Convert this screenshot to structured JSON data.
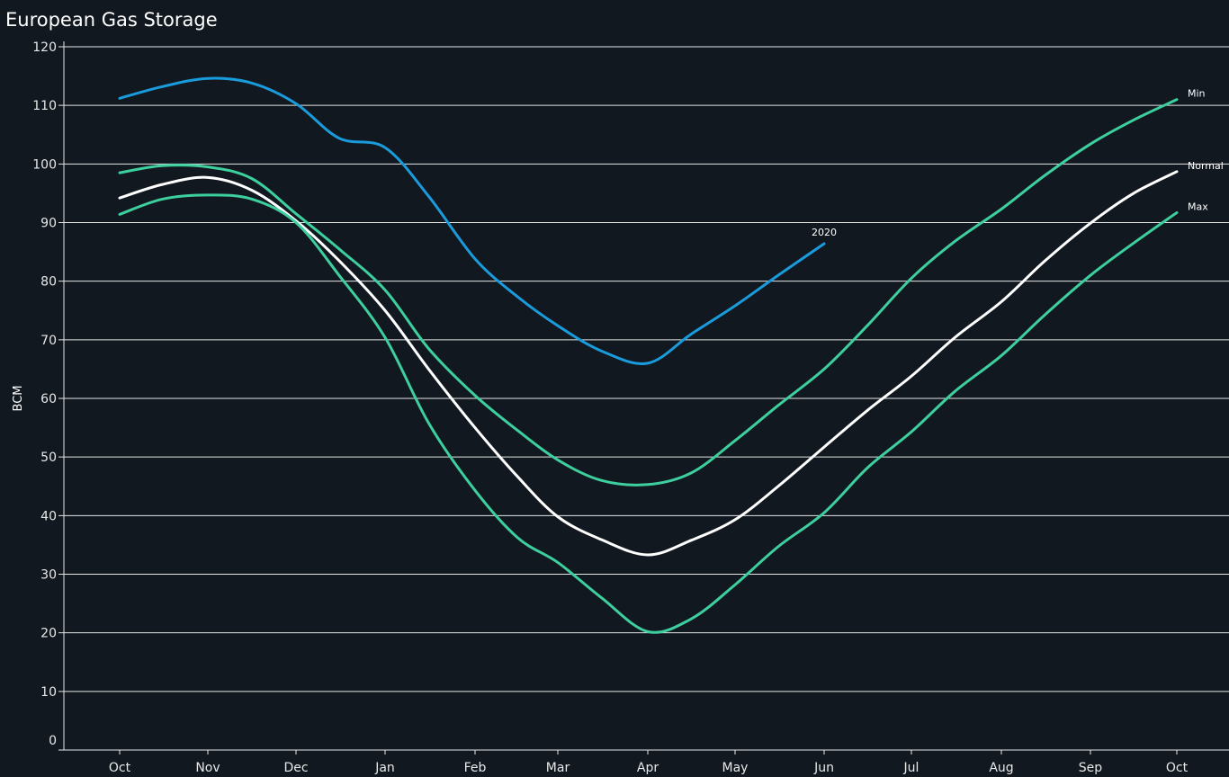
{
  "chart_data": {
    "type": "line",
    "title": "European Gas Storage",
    "xlabel": "",
    "ylabel": "BCM",
    "ylim": [
      0,
      120
    ],
    "yticks": [
      0,
      10,
      20,
      30,
      40,
      50,
      60,
      70,
      80,
      90,
      100,
      110,
      120
    ],
    "xticks": [
      "Oct",
      "Nov",
      "Dec",
      "Jan",
      "Feb",
      "Mar",
      "Apr",
      "May",
      "Jun",
      "Jul",
      "Aug",
      "Sep",
      "Oct"
    ],
    "grid": "horizontal",
    "series": [
      {
        "name": "Min",
        "color": "#3ecf9f",
        "x": [
          "Oct 1",
          "Oct 16",
          "Nov 1",
          "Nov 16",
          "Dec 1",
          "Dec 16",
          "Jan 1",
          "Jan 16",
          "Feb 1",
          "Feb 16",
          "Mar 1",
          "Mar 16",
          "Apr 1",
          "Apr 16",
          "May 1",
          "May 16",
          "Jun 1",
          "Jun 16",
          "Jul 1",
          "Jul 16",
          "Aug 1",
          "Aug 16",
          "Sep 1",
          "Sep 16",
          "Oct 1"
        ],
        "values": [
          98.5,
          99.7,
          99.5,
          97.5,
          91.5,
          85.5,
          78.5,
          68.5,
          60.5,
          54.5,
          49.5,
          46,
          45.3,
          47.3,
          52.8,
          58.8,
          65,
          72.5,
          80.5,
          86.8,
          92.3,
          98,
          103.4,
          107.5,
          111
        ]
      },
      {
        "name": "Normal",
        "color": "#ffffff",
        "x": [
          "Oct 1",
          "Oct 16",
          "Nov 1",
          "Nov 16",
          "Dec 1",
          "Dec 16",
          "Jan 1",
          "Jan 16",
          "Feb 1",
          "Feb 16",
          "Mar 1",
          "Mar 16",
          "Apr 1",
          "Apr 16",
          "May 1",
          "May 16",
          "Jun 1",
          "Jun 16",
          "Jul 1",
          "Jul 16",
          "Aug 1",
          "Aug 16",
          "Sep 1",
          "Sep 16",
          "Oct 1"
        ],
        "values": [
          94.2,
          96.5,
          97.7,
          95.5,
          90.3,
          83.5,
          75,
          65,
          55,
          46.6,
          39.8,
          35.9,
          33.3,
          35.8,
          39.3,
          45,
          51.7,
          58,
          63.8,
          70.4,
          76.5,
          83.4,
          89.9,
          95,
          98.7
        ]
      },
      {
        "name": "Max",
        "color": "#3ecf9f",
        "x": [
          "Oct 1",
          "Oct 16",
          "Nov 1",
          "Nov 16",
          "Dec 1",
          "Dec 16",
          "Jan 1",
          "Jan 16",
          "Feb 1",
          "Feb 16",
          "Mar 1",
          "Mar 16",
          "Apr 1",
          "Apr 16",
          "May 1",
          "May 16",
          "Jun 1",
          "Jun 16",
          "Jul 1",
          "Jul 16",
          "Aug 1",
          "Aug 16",
          "Sep 1",
          "Sep 16",
          "Oct 1"
        ],
        "values": [
          91.4,
          94,
          94.7,
          94,
          90,
          81,
          70.4,
          55.8,
          44.3,
          36.2,
          32,
          26,
          20.2,
          22.4,
          28.2,
          34.7,
          40.5,
          48.2,
          54.3,
          61.2,
          67.3,
          74.2,
          81,
          86.5,
          91.7
        ]
      },
      {
        "name": "2020",
        "color": "#1a9bdb",
        "x": [
          "Oct 1",
          "Oct 16",
          "Nov 1",
          "Nov 16",
          "Dec 1",
          "Dec 16",
          "Jan 1",
          "Jan 16",
          "Feb 1",
          "Feb 16",
          "Mar 1",
          "Mar 16",
          "Apr 1",
          "Apr 16",
          "May 1",
          "May 16",
          "Jun 1"
        ],
        "values": [
          111.2,
          113.2,
          114.6,
          113.8,
          110.3,
          104.4,
          102.8,
          94.5,
          83.8,
          77.3,
          72.4,
          68.1,
          66,
          71,
          75.8,
          81,
          86.4
        ]
      }
    ]
  }
}
